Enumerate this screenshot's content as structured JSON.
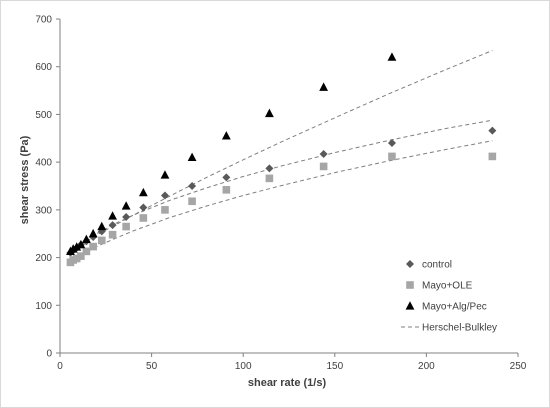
{
  "chart_data": {
    "type": "scatter",
    "xlabel": "shear rate (1/s)",
    "ylabel": "shear stress (Pa)",
    "xlim": [
      0,
      250
    ],
    "ylim": [
      0,
      700
    ],
    "xticks": [
      0,
      50,
      100,
      150,
      200,
      250
    ],
    "yticks": [
      0,
      100,
      200,
      300,
      400,
      500,
      600,
      700
    ],
    "grid": false,
    "legend_position": "right",
    "series": [
      {
        "name": "control",
        "marker": "diamond",
        "color": "#595959",
        "points": [
          [
            5.7,
            210
          ],
          [
            7.2,
            215
          ],
          [
            9.1,
            220
          ],
          [
            11.4,
            227
          ],
          [
            14.4,
            234
          ],
          [
            18.1,
            243
          ],
          [
            22.8,
            255
          ],
          [
            28.7,
            268
          ],
          [
            36.1,
            285
          ],
          [
            45.5,
            305
          ],
          [
            57.3,
            330
          ],
          [
            72.1,
            350
          ],
          [
            90.8,
            368
          ],
          [
            114.3,
            387
          ],
          [
            143.9,
            417
          ],
          [
            181.2,
            440
          ],
          [
            236.0,
            466
          ]
        ]
      },
      {
        "name": "Mayo+OLE",
        "marker": "square",
        "color": "#a6a6a6",
        "points": [
          [
            5.7,
            190
          ],
          [
            7.2,
            195
          ],
          [
            9.1,
            198
          ],
          [
            11.4,
            203
          ],
          [
            14.4,
            213
          ],
          [
            18.1,
            223
          ],
          [
            22.8,
            236
          ],
          [
            28.7,
            248
          ],
          [
            36.1,
            265
          ],
          [
            45.5,
            283
          ],
          [
            57.3,
            300
          ],
          [
            72.1,
            318
          ],
          [
            90.8,
            342
          ],
          [
            114.3,
            366
          ],
          [
            143.9,
            391
          ],
          [
            181.2,
            412
          ],
          [
            236.0,
            412
          ]
        ]
      },
      {
        "name": "Mayo+Alg/Pec",
        "marker": "triangle",
        "color": "#000000",
        "points": [
          [
            5.7,
            213
          ],
          [
            7.2,
            218
          ],
          [
            9.1,
            222
          ],
          [
            11.4,
            227
          ],
          [
            14.4,
            238
          ],
          [
            18.1,
            250
          ],
          [
            22.8,
            265
          ],
          [
            28.7,
            287
          ],
          [
            36.1,
            308
          ],
          [
            45.5,
            336
          ],
          [
            57.3,
            373
          ],
          [
            72.1,
            410
          ],
          [
            90.8,
            455
          ],
          [
            114.3,
            502
          ],
          [
            143.9,
            557
          ],
          [
            181.2,
            620
          ]
        ]
      }
    ],
    "fit": {
      "name": "Herschel-Bulkley",
      "style": "dashed",
      "color": "#7f7f7f",
      "curves": [
        {
          "for": "control",
          "points": [
            [
              5,
              207
            ],
            [
              10,
              224
            ],
            [
              20,
              250
            ],
            [
              30,
              271
            ],
            [
              40,
              289
            ],
            [
              60,
              320
            ],
            [
              80,
              346
            ],
            [
              100,
              370
            ],
            [
              120,
              391
            ],
            [
              150,
              420
            ],
            [
              180,
              446
            ],
            [
              210,
              470
            ],
            [
              236,
              488
            ]
          ]
        },
        {
          "for": "Mayo+OLE",
          "points": [
            [
              5,
              193
            ],
            [
              10,
              202
            ],
            [
              20,
              223
            ],
            [
              30,
              240
            ],
            [
              40,
              256
            ],
            [
              60,
              284
            ],
            [
              80,
              308
            ],
            [
              100,
              330
            ],
            [
              120,
              350
            ],
            [
              150,
              378
            ],
            [
              180,
              403
            ],
            [
              210,
              426
            ],
            [
              236,
              445
            ]
          ]
        },
        {
          "for": "Mayo+Alg/Pec",
          "points": [
            [
              5,
              210
            ],
            [
              10,
              222
            ],
            [
              20,
              247
            ],
            [
              30,
              268
            ],
            [
              40,
              289
            ],
            [
              60,
              329
            ],
            [
              80,
              368
            ],
            [
              100,
              405
            ],
            [
              120,
              441
            ],
            [
              150,
              493
            ],
            [
              180,
              544
            ],
            [
              210,
              593
            ],
            [
              236,
              634
            ]
          ]
        }
      ]
    }
  }
}
